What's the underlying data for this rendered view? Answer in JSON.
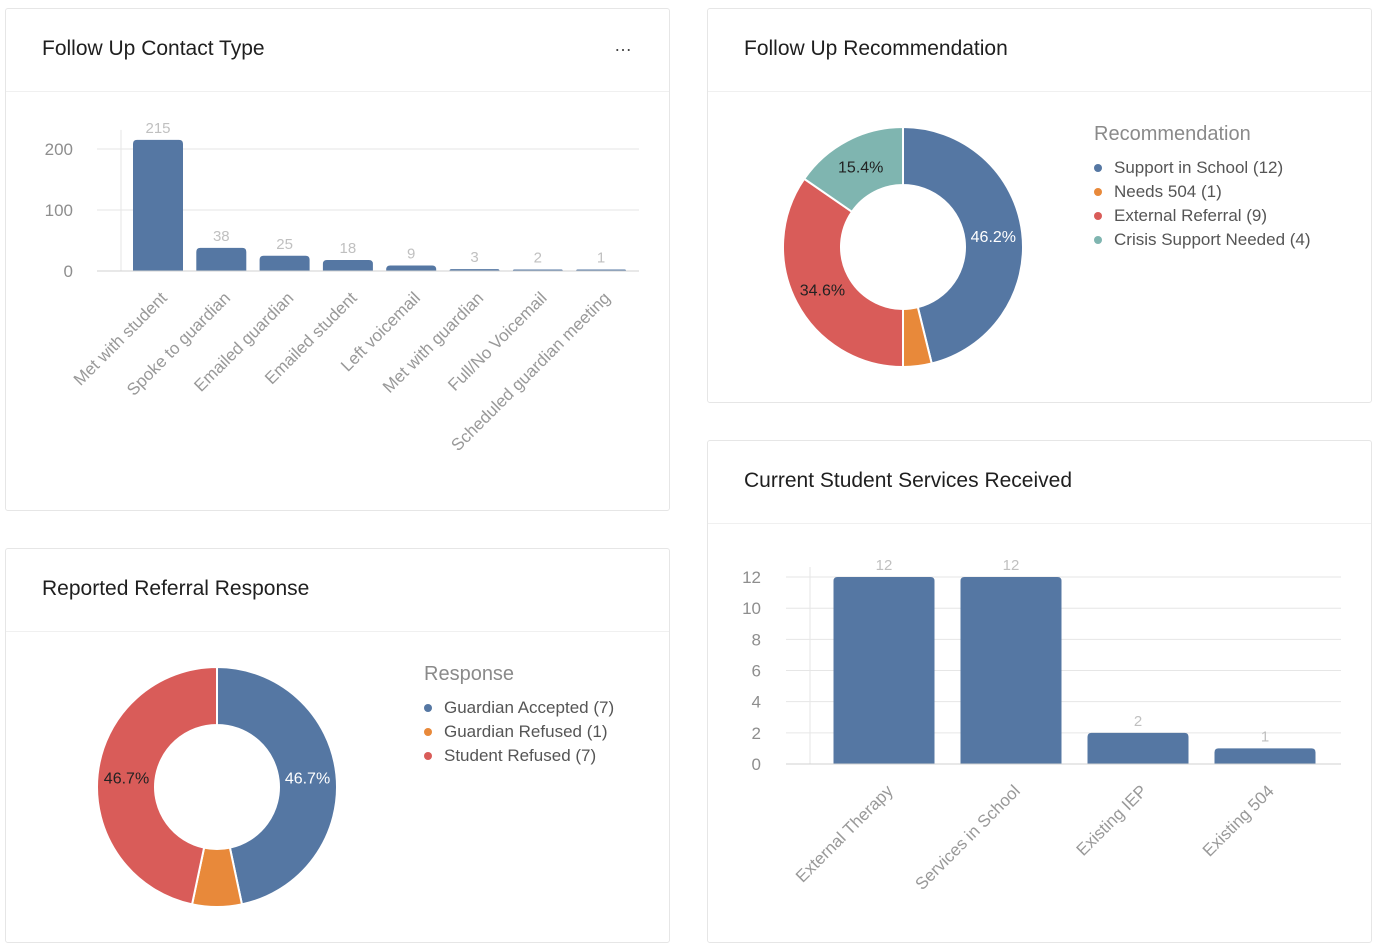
{
  "colors": {
    "blue": "#5577a3",
    "orange": "#e8893a",
    "red": "#d95c59",
    "teal": "#7fb5b0",
    "grid": "#e6e6e6",
    "label": "#999999",
    "value_label": "#c0c0c0"
  },
  "cards": {
    "contact_type": {
      "title": "Follow Up Contact Type",
      "more_icon": "…"
    },
    "recommendation": {
      "title": "Follow Up Recommendation",
      "legend_title": "Recommendation"
    },
    "referral_response": {
      "title": "Reported Referral Response",
      "legend_title": "Response"
    },
    "services": {
      "title": "Current Student Services Received"
    }
  },
  "chart_data": [
    {
      "type": "bar",
      "title": "Follow Up Contact Type",
      "categories": [
        "Met with student",
        "Spoke to guardian",
        "Emailed guardian",
        "Emailed student",
        "Left voicemail",
        "Met with guardian",
        "Full/No Voicemail",
        "Scheduled guardian meeting"
      ],
      "values": [
        215,
        38,
        25,
        18,
        9,
        3,
        2,
        1
      ],
      "yticks": [
        "0",
        "100",
        "200"
      ],
      "ylim": [
        0,
        215
      ],
      "grid": true
    },
    {
      "type": "pie",
      "donut": true,
      "title": "Follow Up Recommendation",
      "legend_title": "Recommendation",
      "legend_position": "right",
      "slices": [
        {
          "label": "Support in School",
          "value": 12,
          "legend": "Support in School (12)",
          "pct_label": "46.2%",
          "color": "#5577a3"
        },
        {
          "label": "Needs 504",
          "value": 1,
          "legend": "Needs 504 (1)",
          "pct_label": "",
          "color": "#e8893a"
        },
        {
          "label": "External Referral",
          "value": 9,
          "legend": "External Referral (9)",
          "pct_label": "34.6%",
          "color": "#d95c59"
        },
        {
          "label": "Crisis Support Needed",
          "value": 4,
          "legend": "Crisis Support Needed (4)",
          "pct_label": "15.4%",
          "color": "#7fb5b0"
        }
      ]
    },
    {
      "type": "pie",
      "donut": true,
      "title": "Reported Referral Response",
      "legend_title": "Response",
      "legend_position": "right",
      "slices": [
        {
          "label": "Guardian Accepted",
          "value": 7,
          "legend": "Guardian Accepted (7)",
          "pct_label": "46.7%",
          "color": "#5577a3"
        },
        {
          "label": "Guardian Refused",
          "value": 1,
          "legend": "Guardian Refused (1)",
          "pct_label": "",
          "color": "#e8893a"
        },
        {
          "label": "Student Refused",
          "value": 7,
          "legend": "Student Refused (7)",
          "pct_label": "46.7%",
          "color": "#d95c59"
        }
      ]
    },
    {
      "type": "bar",
      "title": "Current Student Services Received",
      "categories": [
        "External Therapy",
        "Services in School",
        "Existing IEP",
        "Existing 504"
      ],
      "values": [
        12,
        12,
        2,
        1
      ],
      "yticks": [
        "0",
        "2",
        "4",
        "6",
        "8",
        "10",
        "12"
      ],
      "ylim": [
        0,
        12
      ],
      "grid": true
    }
  ]
}
